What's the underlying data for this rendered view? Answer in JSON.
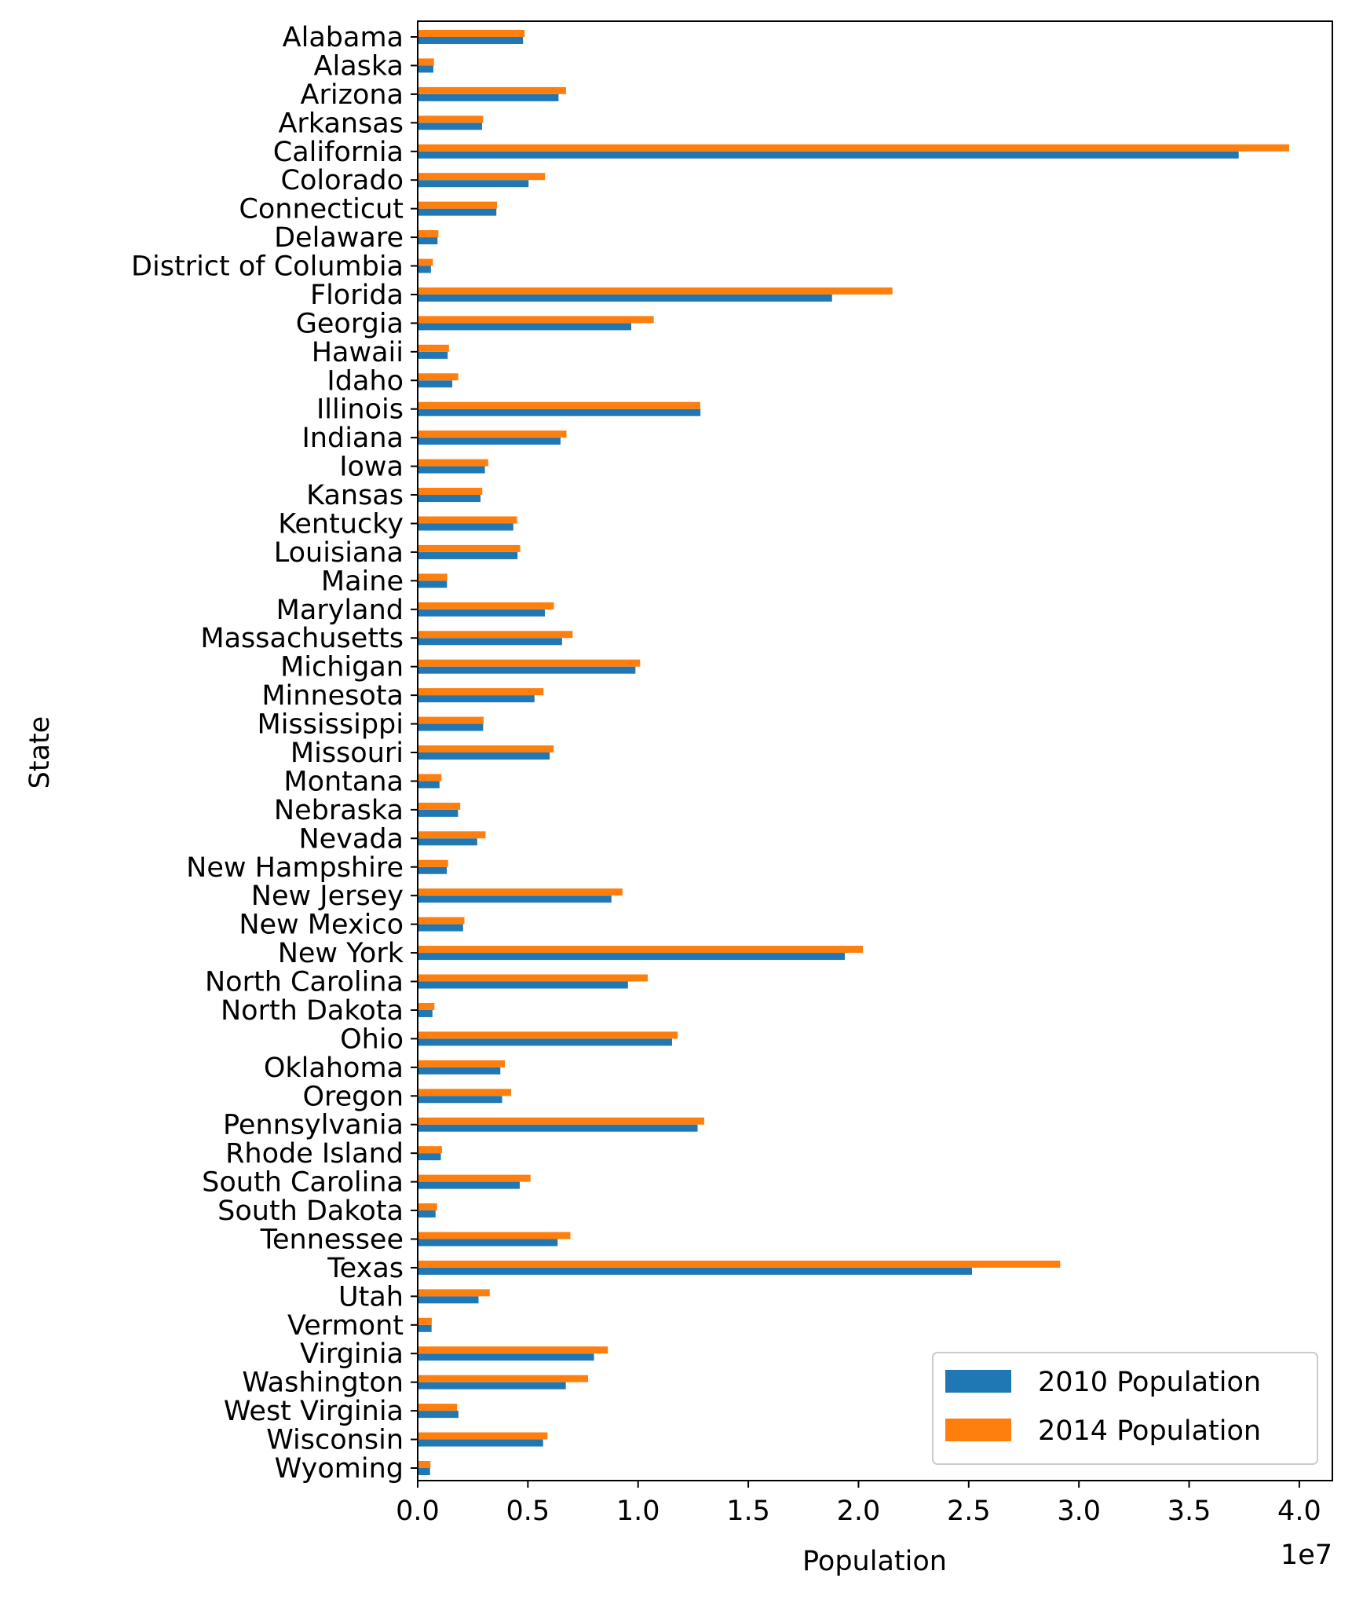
{
  "chart_data": {
    "type": "bar",
    "orientation": "horizontal",
    "xlabel": "Population",
    "ylabel": "State",
    "x_offset_label": "1e7",
    "xlim": [
      0,
      41500000
    ],
    "x_ticks": [
      0,
      5000000,
      10000000,
      15000000,
      20000000,
      25000000,
      30000000,
      35000000,
      40000000
    ],
    "x_tick_labels": [
      "0.0",
      "0.5",
      "1.0",
      "1.5",
      "2.0",
      "2.5",
      "3.0",
      "3.5",
      "4.0"
    ],
    "legend_position": "lower-right",
    "grid": false,
    "categories": [
      "Alabama",
      "Alaska",
      "Arizona",
      "Arkansas",
      "California",
      "Colorado",
      "Connecticut",
      "Delaware",
      "District of Columbia",
      "Florida",
      "Georgia",
      "Hawaii",
      "Idaho",
      "Illinois",
      "Indiana",
      "Iowa",
      "Kansas",
      "Kentucky",
      "Louisiana",
      "Maine",
      "Maryland",
      "Massachusetts",
      "Michigan",
      "Minnesota",
      "Mississippi",
      "Missouri",
      "Montana",
      "Nebraska",
      "Nevada",
      "New Hampshire",
      "New Jersey",
      "New Mexico",
      "New York",
      "North Carolina",
      "North Dakota",
      "Ohio",
      "Oklahoma",
      "Oregon",
      "Pennsylvania",
      "Rhode Island",
      "South Carolina",
      "South Dakota",
      "Tennessee",
      "Texas",
      "Utah",
      "Vermont",
      "Virginia",
      "Washington",
      "West Virginia",
      "Wisconsin",
      "Wyoming"
    ],
    "series": [
      {
        "name": "2010 Population",
        "color": "#1f77b4",
        "values": [
          4780000,
          710000,
          6390000,
          2920000,
          37250000,
          5030000,
          3570000,
          900000,
          600000,
          18800000,
          9690000,
          1360000,
          1570000,
          12830000,
          6480000,
          3050000,
          2850000,
          4340000,
          4530000,
          1330000,
          5770000,
          6550000,
          9880000,
          5300000,
          2970000,
          5990000,
          990000,
          1830000,
          2700000,
          1320000,
          8790000,
          2060000,
          19380000,
          9540000,
          670000,
          11540000,
          3750000,
          3830000,
          12700000,
          1050000,
          4630000,
          810000,
          6350000,
          25150000,
          2760000,
          630000,
          8000000,
          6720000,
          1850000,
          5690000,
          560000
        ]
      },
      {
        "name": "2014 Population",
        "color": "#ff7f0e",
        "values": [
          4850000,
          740000,
          6730000,
          2970000,
          39540000,
          5780000,
          3600000,
          940000,
          690000,
          21540000,
          10710000,
          1420000,
          1840000,
          12820000,
          6750000,
          3200000,
          2930000,
          4510000,
          4650000,
          1340000,
          6180000,
          7030000,
          10090000,
          5710000,
          2990000,
          6170000,
          1080000,
          1930000,
          3080000,
          1380000,
          9290000,
          2120000,
          20200000,
          10440000,
          760000,
          11800000,
          3960000,
          4240000,
          13000000,
          1100000,
          5120000,
          880000,
          6930000,
          29150000,
          3270000,
          640000,
          8630000,
          7730000,
          1790000,
          5890000,
          580000
        ]
      }
    ]
  }
}
